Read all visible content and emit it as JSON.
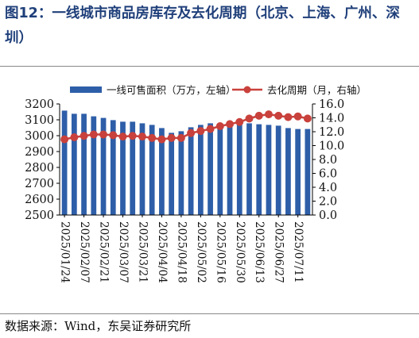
{
  "figure": {
    "title": "图12：一线城市商品房库存及去化周期（北京、上海、广州、深圳）",
    "source": "数据来源：Wind，东吴证券研究所"
  },
  "colors": {
    "bar": "#2e5ea8",
    "line": "#c9413c",
    "title": "#1f3f7a"
  },
  "chart_data": {
    "type": "bar",
    "categories": [
      "2025/01/24",
      "2025/01/31",
      "2025/02/07",
      "2025/02/14",
      "2025/02/21",
      "2025/02/28",
      "2025/03/07",
      "2025/03/14",
      "2025/03/21",
      "2025/03/28",
      "2025/04/04",
      "2025/04/11",
      "2025/04/18",
      "2025/04/25",
      "2025/05/02",
      "2025/05/09",
      "2025/05/16",
      "2025/05/23",
      "2025/05/30",
      "2025/06/06",
      "2025/06/13",
      "2025/06/20",
      "2025/06/27",
      "2025/07/04",
      "2025/07/11",
      "2025/07/18"
    ],
    "x_tick_labels": [
      "2025/01/24",
      "2025/02/07",
      "2025/02/21",
      "2025/03/07",
      "2025/03/21",
      "2025/04/04",
      "2025/04/18",
      "2025/05/02",
      "2025/05/16",
      "2025/05/30",
      "2025/06/13",
      "2025/06/27",
      "2025/07/11"
    ],
    "series": [
      {
        "name": "一线可售面积（万方，左轴）",
        "type": "bar",
        "axis": "left",
        "values": [
          3158,
          3138,
          3138,
          3122,
          3112,
          3098,
          3088,
          3088,
          3078,
          3068,
          3048,
          3018,
          3028,
          3053,
          3068,
          3078,
          3073,
          3078,
          3083,
          3078,
          3072,
          3068,
          3063,
          3048,
          3042,
          3042
        ]
      },
      {
        "name": "去化周期（月，右轴）",
        "type": "line",
        "axis": "right",
        "values": [
          10.9,
          11.2,
          11.4,
          11.6,
          11.6,
          11.5,
          11.3,
          11.4,
          11.3,
          11.1,
          10.9,
          11.1,
          11.1,
          11.8,
          12.1,
          12.4,
          12.8,
          13.1,
          13.4,
          13.9,
          14.3,
          14.5,
          14.3,
          14.1,
          14.2,
          13.9
        ]
      }
    ],
    "y_left": {
      "ylim": [
        2500,
        3200
      ],
      "ticks": [
        "2500",
        "2600",
        "2700",
        "2800",
        "2900",
        "3000",
        "3100",
        "3200"
      ]
    },
    "y_right": {
      "ylim": [
        0,
        16
      ],
      "ticks": [
        "0.0",
        "2.0",
        "4.0",
        "6.0",
        "8.0",
        "10.0",
        "12.0",
        "14.0",
        "16.0"
      ]
    },
    "legend_position": "top",
    "grid": false
  }
}
